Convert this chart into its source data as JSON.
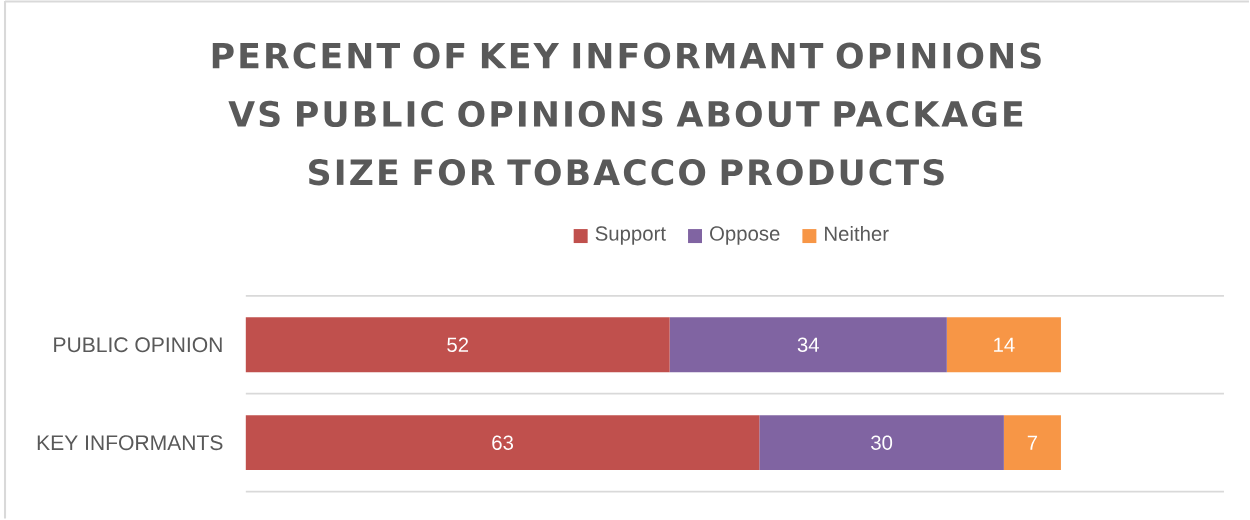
{
  "chart_data": {
    "type": "bar",
    "orientation": "horizontal",
    "stacked": true,
    "title": "PERCENT OF KEY INFORMANT OPINIONS VS PUBLIC OPINIONS ABOUT PACKAGE SIZE FOR TOBACCO PRODUCTS",
    "categories": [
      "PUBLIC OPINION",
      "KEY INFORMANTS"
    ],
    "series": [
      {
        "name": "Support",
        "color": "#c0504d",
        "values": [
          52,
          63
        ]
      },
      {
        "name": "Oppose",
        "color": "#8064a2",
        "values": [
          34,
          30
        ]
      },
      {
        "name": "Neither",
        "color": "#f79646",
        "values": [
          14,
          7
        ]
      }
    ],
    "data_labels": true,
    "legend": "top",
    "grid": "y",
    "tick_labels": "y"
  }
}
